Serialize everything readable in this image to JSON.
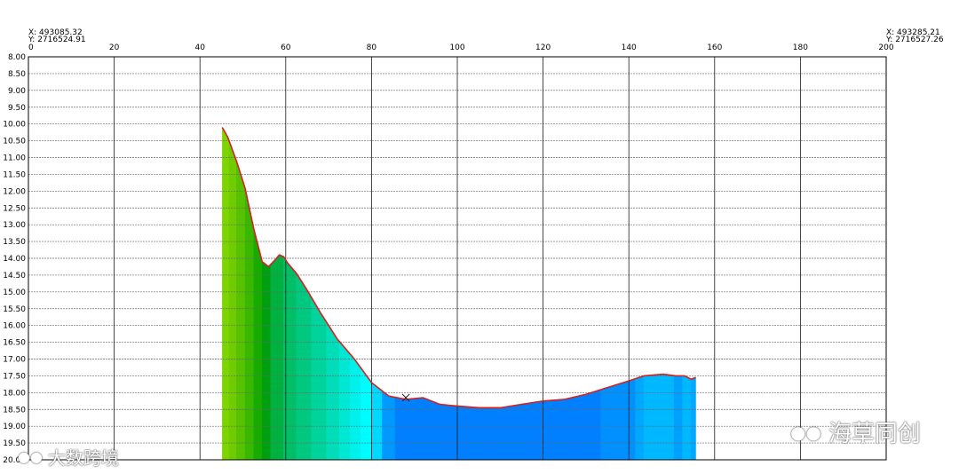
{
  "coords": {
    "left_x": "X: 493085.32",
    "left_y": "Y: 2716524.91",
    "right_x": "X: 493285.21",
    "right_y": "Y: 2716527.26"
  },
  "watermarks": {
    "left": "大数跨境",
    "right": "海草同创"
  },
  "chart_data": {
    "type": "area",
    "title": "",
    "xlabel": "",
    "ylabel": "",
    "xlim": [
      0,
      200
    ],
    "ylim": [
      8.0,
      20.0
    ],
    "y_inverted": true,
    "grid": true,
    "x_ticks": [
      0,
      20,
      40,
      60,
      80,
      100,
      120,
      140,
      160,
      180,
      200
    ],
    "y_ticks": [
      8.0,
      8.5,
      9.0,
      9.5,
      10.0,
      10.5,
      11.0,
      11.5,
      12.0,
      12.5,
      13.0,
      13.5,
      14.0,
      14.5,
      15.0,
      15.5,
      16.0,
      16.5,
      17.0,
      17.5,
      18.0,
      18.5,
      19.0,
      19.5,
      20.0
    ],
    "y_tick_labels": [
      "8.00",
      "8.50",
      "9.00",
      "9.50",
      "10.00",
      "10.50",
      "11.00",
      "11.50",
      "12.00",
      "12.50",
      "13.00",
      "13.50",
      "14.00",
      "14.50",
      "15.00",
      "15.50",
      "16.00",
      "16.50",
      "17.00",
      "17.50",
      "18.00",
      "18.50",
      "19.00",
      "19.50",
      "20.00"
    ],
    "series": [
      {
        "color": "#d42020",
        "x": [
          45.2,
          46.5,
          48.5,
          50.5,
          52.5,
          54.5,
          56.0,
          57.5,
          58.5,
          59.5,
          60.5,
          62.5,
          65.0,
          68.0,
          72.0,
          76.0,
          80.0,
          84.0,
          88.0,
          92.0,
          96.0,
          100.0,
          105.0,
          110.0,
          115.0,
          120.0,
          125.0,
          130.0,
          135.0,
          140.0,
          143.5,
          148.0,
          151.0,
          153.0,
          154.5,
          155.6
        ],
        "y": [
          10.1,
          10.4,
          11.1,
          11.9,
          13.1,
          14.1,
          14.25,
          14.05,
          13.9,
          13.95,
          14.15,
          14.45,
          14.95,
          15.6,
          16.4,
          17.0,
          17.7,
          18.1,
          18.2,
          18.15,
          18.35,
          18.4,
          18.45,
          18.45,
          18.35,
          18.25,
          18.2,
          18.05,
          17.85,
          17.65,
          17.5,
          17.45,
          17.5,
          17.5,
          17.6,
          17.55
        ]
      }
    ],
    "marker": {
      "symbol": "x",
      "x": 88.0,
      "y": 18.15
    },
    "fill_bands": [
      {
        "from": 45.2,
        "to": 46.8,
        "color": "#7fd400"
      },
      {
        "from": 46.8,
        "to": 48.5,
        "color": "#6fcc00"
      },
      {
        "from": 48.5,
        "to": 50.5,
        "color": "#56c200"
      },
      {
        "from": 50.5,
        "to": 52.5,
        "color": "#3ab800"
      },
      {
        "from": 52.5,
        "to": 54.5,
        "color": "#18ac00"
      },
      {
        "from": 54.5,
        "to": 56.5,
        "color": "#009f10"
      },
      {
        "from": 56.5,
        "to": 59.5,
        "color": "#00b040"
      },
      {
        "from": 59.5,
        "to": 62.5,
        "color": "#00bf66"
      },
      {
        "from": 62.5,
        "to": 66.0,
        "color": "#00c880"
      },
      {
        "from": 66.0,
        "to": 69.5,
        "color": "#00d39c"
      },
      {
        "from": 69.5,
        "to": 72.5,
        "color": "#00ddb8"
      },
      {
        "from": 72.5,
        "to": 75.0,
        "color": "#00e8d4"
      },
      {
        "from": 75.0,
        "to": 77.5,
        "color": "#00f0ec"
      },
      {
        "from": 77.5,
        "to": 80.0,
        "color": "#00fcff"
      },
      {
        "from": 80.0,
        "to": 82.5,
        "color": "#00d8ff"
      },
      {
        "from": 82.5,
        "to": 85.5,
        "color": "#0099ff"
      },
      {
        "from": 85.5,
        "to": 133.5,
        "color": "#0080ff"
      },
      {
        "from": 133.5,
        "to": 141.5,
        "color": "#0090ff"
      },
      {
        "from": 141.5,
        "to": 143.5,
        "color": "#00a8ff"
      },
      {
        "from": 143.5,
        "to": 150.5,
        "color": "#00b8ff"
      },
      {
        "from": 150.5,
        "to": 152.5,
        "color": "#00a0ff"
      },
      {
        "from": 152.5,
        "to": 154.5,
        "color": "#00b8ff"
      },
      {
        "from": 154.5,
        "to": 155.6,
        "color": "#00a8ff"
      }
    ]
  }
}
